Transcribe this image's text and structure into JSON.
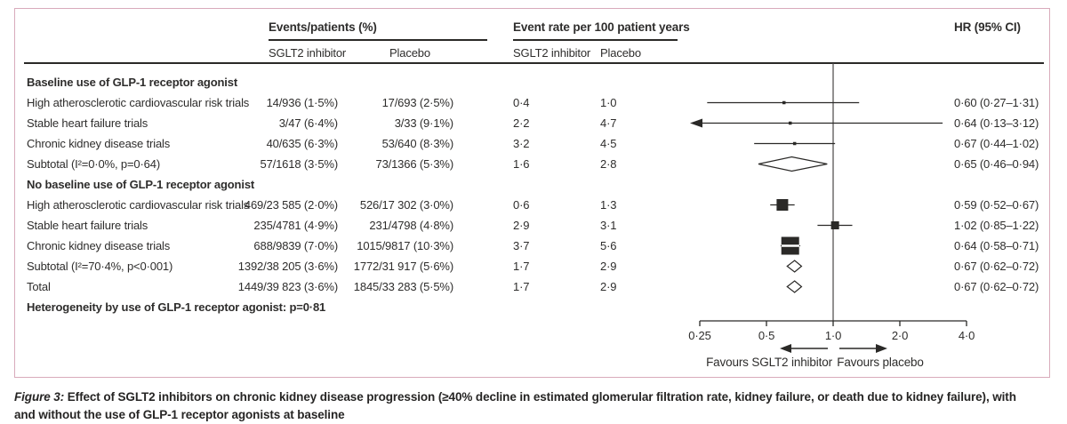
{
  "figure": {
    "header": {
      "events_group": "Events/patients (%)",
      "rate_group": "Event rate per 100 patient years",
      "hr": "HR (95% CI)",
      "events_sglt2": "SGLT2 inhibitor",
      "events_placebo": "Placebo",
      "rate_sglt2": "SGLT2 inhibitor",
      "rate_placebo": "Placebo"
    },
    "caption_prefix": "Figure 3:",
    "caption_text": "Effect of SGLT2 inhibitors on chronic kidney disease progression (≥40% decline in estimated glomerular filtration rate, kidney failure, or death due to kidney failure), with and without the use of GLP-1 receptor agonists at baseline"
  },
  "chart_data": {
    "type": "forest",
    "x_scale": "log2",
    "x_range": [
      0.25,
      4.0
    ],
    "x_ticks": [
      0.25,
      0.5,
      1.0,
      2.0,
      4.0
    ],
    "x_tick_labels": [
      "0·25",
      "0·5",
      "1·0",
      "2·0",
      "4·0"
    ],
    "reference_line": 1.0,
    "favours_left": "Favours SGLT2 inhibitor",
    "favours_right": "Favours placebo",
    "rows": [
      {
        "kind": "group",
        "label": "Baseline use of GLP-1 receptor agonist"
      },
      {
        "kind": "study",
        "label": "High atherosclerotic cardiovascular risk trials",
        "events_sglt2": "14/936 (1·5%)",
        "events_placebo": "17/693 (2·5%)",
        "rate_sglt2": "0·4",
        "rate_placebo": "1·0",
        "hr_text": "0·60 (0·27–1·31)",
        "hr": 0.6,
        "ci_low": 0.27,
        "ci_high": 1.31,
        "marker": "square",
        "size": 3.5
      },
      {
        "kind": "study",
        "label": "Stable heart failure trials",
        "events_sglt2": "3/47 (6·4%)",
        "events_placebo": "3/33 (9·1%)",
        "rate_sglt2": "2·2",
        "rate_placebo": "4·7",
        "hr_text": "0·64 (0·13–3·12)",
        "hr": 0.64,
        "ci_low": 0.13,
        "ci_high": 3.12,
        "marker": "square",
        "size": 3.5
      },
      {
        "kind": "study",
        "label": "Chronic kidney disease trials",
        "events_sglt2": "40/635 (6·3%)",
        "events_placebo": "53/640 (8·3%)",
        "rate_sglt2": "3·2",
        "rate_placebo": "4·5",
        "hr_text": "0·67 (0·44–1·02)",
        "hr": 0.67,
        "ci_low": 0.44,
        "ci_high": 1.02,
        "marker": "square",
        "size": 3.5
      },
      {
        "kind": "subtotal",
        "label": "Subtotal (I²=0·0%, p=0·64)",
        "events_sglt2": "57/1618 (3·5%)",
        "events_placebo": "73/1366 (5·3%)",
        "rate_sglt2": "1·6",
        "rate_placebo": "2·8",
        "hr_text": "0·65 (0·46–0·94)",
        "hr": 0.65,
        "ci_low": 0.46,
        "ci_high": 0.94,
        "marker": "diamond",
        "size": 8
      },
      {
        "kind": "group",
        "label": "No baseline use of GLP-1 receptor agonist"
      },
      {
        "kind": "study",
        "label": "High atherosclerotic cardiovascular risk trials",
        "events_sglt2": "469/23 585 (2·0%)",
        "events_placebo": "526/17 302 (3·0%)",
        "rate_sglt2": "0·6",
        "rate_placebo": "1·3",
        "hr_text": "0·59 (0·52–0·67)",
        "hr": 0.59,
        "ci_low": 0.52,
        "ci_high": 0.67,
        "marker": "square",
        "size": 13
      },
      {
        "kind": "study",
        "label": "Stable heart failure trials",
        "events_sglt2": "235/4781 (4·9%)",
        "events_placebo": "231/4798 (4·8%)",
        "rate_sglt2": "2·9",
        "rate_placebo": "3·1",
        "hr_text": "1·02 (0·85–1·22)",
        "hr": 1.02,
        "ci_low": 0.85,
        "ci_high": 1.22,
        "marker": "square",
        "size": 9
      },
      {
        "kind": "study",
        "label": "Chronic kidney disease trials",
        "events_sglt2": "688/9839 (7·0%)",
        "events_placebo": "1015/9817 (10·3%)",
        "rate_sglt2": "3·7",
        "rate_placebo": "5·6",
        "hr_text": "0·64 (0·58–0·71)",
        "hr": 0.64,
        "ci_low": 0.58,
        "ci_high": 0.71,
        "marker": "square",
        "size": 20,
        "stripe": true
      },
      {
        "kind": "subtotal",
        "label": "Subtotal (I²=70·4%, p<0·001)",
        "events_sglt2": "1392/38 205 (3·6%)",
        "events_placebo": "1772/31 917 (5·6%)",
        "rate_sglt2": "1·7",
        "rate_placebo": "2·9",
        "hr_text": "0·67 (0·62–0·72)",
        "hr": 0.67,
        "ci_low": 0.62,
        "ci_high": 0.72,
        "marker": "diamond",
        "size": 6.5
      },
      {
        "kind": "total",
        "label": "Total",
        "events_sglt2": "1449/39 823 (3·6%)",
        "events_placebo": "1845/33 283 (5·5%)",
        "rate_sglt2": "1·7",
        "rate_placebo": "2·9",
        "hr_text": "0·67 (0·62–0·72)",
        "hr": 0.67,
        "ci_low": 0.62,
        "ci_high": 0.72,
        "marker": "diamond",
        "size": 6.5
      },
      {
        "kind": "note",
        "label": "Heterogeneity by use of GLP-1 receptor agonist: p=0·81"
      }
    ]
  },
  "colors": {
    "panel_border": "#d9abbb",
    "text": "#2e2d2c",
    "plot_ink": "#2a2927"
  }
}
